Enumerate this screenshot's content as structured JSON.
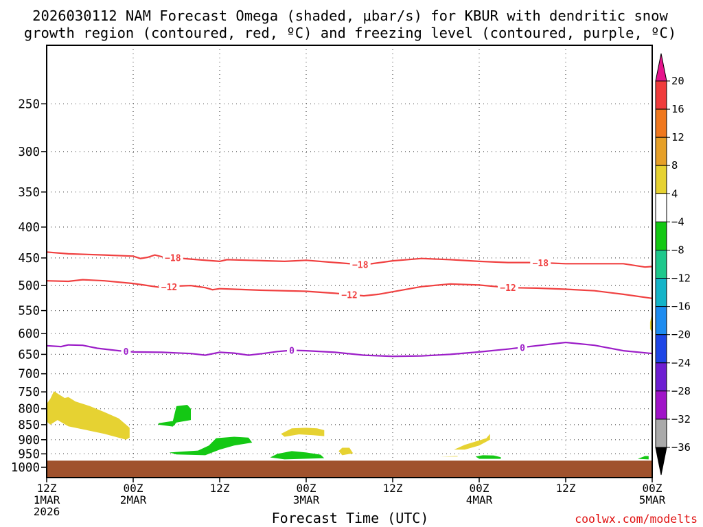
{
  "chart_data": {
    "type": "time-height cross section",
    "title_line1": "2026030112 NAM Forecast Omega (shaded, μbar/s) for KBUR with dendritic snow",
    "title_line2": "growth region (contoured, red, ºC) and freezing level (contoured, purple, ºC)",
    "xlabel": "Forecast Time (UTC)",
    "ylabel": "",
    "credit": "coolwx.com/modelts",
    "x_range_hours": [
      0,
      84
    ],
    "y_range_hPa": [
      200,
      1040
    ],
    "y_ticks": [
      250,
      300,
      350,
      400,
      450,
      500,
      550,
      600,
      650,
      700,
      750,
      800,
      850,
      900,
      950,
      1000
    ],
    "x_ticks": [
      {
        "hour": 0,
        "line1": "12Z",
        "line2": "1MAR",
        "line3": "2026"
      },
      {
        "hour": 12,
        "line1": "00Z",
        "line2": "2MAR",
        "line3": ""
      },
      {
        "hour": 24,
        "line1": "12Z",
        "line2": "",
        "line3": ""
      },
      {
        "hour": 36,
        "line1": "00Z",
        "line2": "3MAR",
        "line3": ""
      },
      {
        "hour": 48,
        "line1": "12Z",
        "line2": "",
        "line3": ""
      },
      {
        "hour": 60,
        "line1": "00Z",
        "line2": "4MAR",
        "line3": ""
      },
      {
        "hour": 72,
        "line1": "12Z",
        "line2": "",
        "line3": ""
      },
      {
        "hour": 84,
        "line1": "00Z",
        "line2": "5MAR",
        "line3": ""
      }
    ],
    "ground_level_hPa": 975,
    "ground_color": "#a0522d",
    "colorbar": {
      "labels": [
        "20",
        "16",
        "12",
        "8",
        "4",
        "−4",
        "−8",
        "−12",
        "−16",
        "−20",
        "−24",
        "−28",
        "−32",
        "−36"
      ],
      "colors": [
        "#f03c3c",
        "#f0781e",
        "#e6a028",
        "#e6d232",
        "#ffffff",
        "#14c814",
        "#1ec88c",
        "#14b4c8",
        "#1e8cf0",
        "#1e46e6",
        "#6e1ed2",
        "#a014c8",
        "#aaaaaa"
      ],
      "top_cap_color": "#e6148c",
      "bottom_cap_color": "#000000"
    },
    "series": [
      {
        "name": "-18 C isotherm",
        "color": "#f04040",
        "label": "−18",
        "label_hours": [
          17.5,
          43.5,
          68.5
        ],
        "points": [
          [
            0,
            440
          ],
          [
            3,
            443
          ],
          [
            8,
            445
          ],
          [
            12,
            447
          ],
          [
            13,
            451
          ],
          [
            14,
            449
          ],
          [
            15,
            445
          ],
          [
            16,
            448
          ],
          [
            20,
            452
          ],
          [
            24,
            456
          ],
          [
            25,
            453
          ],
          [
            28,
            454
          ],
          [
            33,
            456
          ],
          [
            36,
            454
          ],
          [
            40,
            458
          ],
          [
            44,
            462
          ],
          [
            48,
            455
          ],
          [
            52,
            451
          ],
          [
            56,
            453
          ],
          [
            60,
            456
          ],
          [
            64,
            458
          ],
          [
            68,
            458
          ],
          [
            72,
            460
          ],
          [
            76,
            460
          ],
          [
            80,
            460
          ],
          [
            83,
            466
          ],
          [
            84,
            465
          ]
        ]
      },
      {
        "name": "-12 C isotherm",
        "color": "#f04040",
        "label": "−12",
        "label_hours": [
          17,
          42,
          64
        ],
        "points": [
          [
            0,
            491
          ],
          [
            3,
            492
          ],
          [
            5,
            489
          ],
          [
            8,
            491
          ],
          [
            12,
            496
          ],
          [
            14,
            500
          ],
          [
            15,
            502
          ],
          [
            16,
            504
          ],
          [
            18,
            501
          ],
          [
            20,
            500
          ],
          [
            22,
            504
          ],
          [
            22.5,
            506
          ],
          [
            23,
            508
          ],
          [
            24,
            506
          ],
          [
            26,
            507
          ],
          [
            30,
            509
          ],
          [
            36,
            511
          ],
          [
            40,
            515
          ],
          [
            44,
            520
          ],
          [
            46,
            517
          ],
          [
            48,
            512
          ],
          [
            52,
            502
          ],
          [
            56,
            497
          ],
          [
            60,
            499
          ],
          [
            64,
            504
          ],
          [
            68,
            505
          ],
          [
            72,
            507
          ],
          [
            76,
            510
          ],
          [
            80,
            517
          ],
          [
            84,
            525
          ]
        ]
      },
      {
        "name": "0 C freezing level",
        "color": "#9c1ec8",
        "label": "0",
        "label_hours": [
          11,
          34,
          66
        ],
        "points": [
          [
            0,
            629
          ],
          [
            2,
            631
          ],
          [
            3,
            627
          ],
          [
            5,
            628
          ],
          [
            7,
            635
          ],
          [
            10,
            641
          ],
          [
            12,
            644
          ],
          [
            16,
            645
          ],
          [
            20,
            648
          ],
          [
            22,
            652
          ],
          [
            24,
            645
          ],
          [
            26,
            647
          ],
          [
            28,
            652
          ],
          [
            30,
            648
          ],
          [
            32,
            643
          ],
          [
            34,
            640
          ],
          [
            36,
            641
          ],
          [
            40,
            645
          ],
          [
            44,
            652
          ],
          [
            48,
            655
          ],
          [
            52,
            654
          ],
          [
            56,
            650
          ],
          [
            60,
            644
          ],
          [
            64,
            637
          ],
          [
            68,
            629
          ],
          [
            72,
            621
          ],
          [
            76,
            628
          ],
          [
            80,
            641
          ],
          [
            84,
            648
          ]
        ]
      }
    ],
    "shaded_regions": [
      {
        "bin": "4 to 8",
        "color": "#e6d232",
        "outline": [
          [
            0,
            785
          ],
          [
            0.5,
            770
          ],
          [
            1,
            748
          ],
          [
            2.5,
            768
          ],
          [
            3,
            765
          ],
          [
            4,
            778
          ],
          [
            6,
            792
          ],
          [
            8,
            810
          ],
          [
            10,
            830
          ],
          [
            11.5,
            860
          ],
          [
            11.5,
            893
          ],
          [
            11,
            900
          ],
          [
            8,
            880
          ],
          [
            5,
            865
          ],
          [
            3,
            855
          ],
          [
            1.5,
            835
          ],
          [
            0.5,
            850
          ],
          [
            0,
            840
          ]
        ]
      },
      {
        "bin": "4 to 8",
        "color": "#e6d232",
        "outline": [
          [
            32.5,
            880
          ],
          [
            34,
            862
          ],
          [
            36,
            860
          ],
          [
            37.5,
            862
          ],
          [
            38.5,
            868
          ],
          [
            38.5,
            888
          ],
          [
            37,
            885
          ],
          [
            35,
            882
          ],
          [
            33,
            890
          ]
        ]
      },
      {
        "bin": "4 to 8",
        "color": "#e6d232",
        "outline": [
          [
            40.5,
            940
          ],
          [
            41,
            928
          ],
          [
            42,
            928
          ],
          [
            42.5,
            948
          ],
          [
            41,
            955
          ]
        ]
      },
      {
        "bin": "4 to 8",
        "color": "#e6d232",
        "outline": [
          [
            54.5,
            960
          ],
          [
            57,
            958
          ],
          [
            57,
            960
          ]
        ]
      },
      {
        "bin": "4 to 8",
        "color": "#e6d232",
        "outline": [
          [
            56.5,
            935
          ],
          [
            58,
            918
          ],
          [
            61,
            895
          ],
          [
            61.5,
            880
          ],
          [
            61.5,
            900
          ],
          [
            60,
            920
          ],
          [
            58,
            935
          ]
        ]
      },
      {
        "bin": "4 to 8",
        "color": "#e6d232",
        "outline": [
          [
            83.7,
            575
          ],
          [
            84,
            555
          ],
          [
            84,
            598
          ],
          [
            83.7,
            590
          ]
        ]
      },
      {
        "bin": "-8 to -4",
        "color": "#14c814",
        "outline": [
          [
            15.5,
            845
          ],
          [
            17.5,
            838
          ],
          [
            18,
            792
          ],
          [
            19.5,
            788
          ],
          [
            20,
            800
          ],
          [
            20,
            835
          ],
          [
            18,
            843
          ],
          [
            17.5,
            856
          ],
          [
            15.5,
            850
          ]
        ]
      },
      {
        "bin": "-8 to -4",
        "color": "#14c814",
        "outline": [
          [
            17,
            945
          ],
          [
            21,
            938
          ],
          [
            22.5,
            920
          ],
          [
            23.5,
            895
          ],
          [
            26,
            890
          ],
          [
            28,
            893
          ],
          [
            28.5,
            910
          ],
          [
            26,
            920
          ],
          [
            24,
            935
          ],
          [
            22,
            955
          ],
          [
            18,
            952
          ]
        ]
      },
      {
        "bin": "-8 to -4",
        "color": "#14c814",
        "outline": [
          [
            31,
            963
          ],
          [
            32,
            950
          ],
          [
            34,
            940
          ],
          [
            36,
            945
          ],
          [
            38,
            953
          ],
          [
            38.5,
            966
          ],
          [
            33,
            970
          ]
        ]
      },
      {
        "bin": "-8 to -4",
        "color": "#14c814",
        "outline": [
          [
            59.5,
            960
          ],
          [
            60.5,
            955
          ],
          [
            62,
            956
          ],
          [
            63,
            962
          ],
          [
            63,
            968
          ],
          [
            60,
            968
          ]
        ]
      },
      {
        "bin": "-8 to -4",
        "color": "#14c814",
        "outline": [
          [
            82,
            968
          ],
          [
            83,
            958
          ],
          [
            83.5,
            958
          ],
          [
            83.5,
            970
          ]
        ]
      }
    ]
  }
}
